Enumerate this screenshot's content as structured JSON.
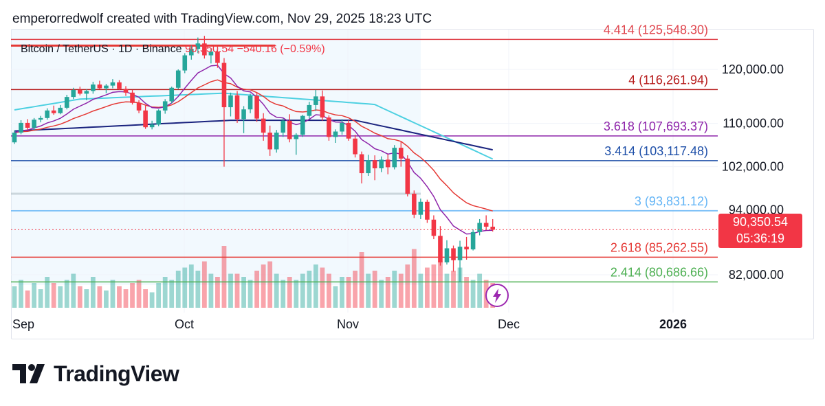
{
  "attribution": "emperorredwolf created with TradingView.com, Nov 29, 2025 18:23 UTC",
  "legend": {
    "symbol": "Bitcoin / TetherUS · 1D · Binance",
    "price": "90,350.54",
    "change": "−540.16 (−0.59%)"
  },
  "price_tag": {
    "price": "90,350.54",
    "countdown": "05:36:19"
  },
  "brand": "TradingView",
  "chart_data": {
    "type": "candlestick",
    "title": "",
    "y_axis": {
      "ticks": [
        "120,000.00",
        "110,000.00",
        "102,000.00",
        "94,000.00",
        "82,000.00"
      ],
      "values": [
        120000,
        110000,
        102000,
        94000,
        82000
      ]
    },
    "x_axis": {
      "ticks": [
        "Sep",
        "Oct",
        "Nov",
        "Dec",
        "2026"
      ]
    },
    "fib_levels": [
      {
        "ratio": "4.414",
        "price": "125,548.30",
        "label": "4.414 (125,548.30)",
        "color": "#e0454d",
        "value": 125548.3
      },
      {
        "ratio": "4",
        "price": "116,261.94",
        "label": "4 (116,261.94)",
        "color": "#b71c1c",
        "value": 116261.94
      },
      {
        "ratio": "3.618",
        "price": "107,693.37",
        "label": "3.618 (107,693.37)",
        "color": "#8e24aa",
        "value": 107693.37
      },
      {
        "ratio": "3.414",
        "price": "103,117.48",
        "label": "3.414 (103,117.48)",
        "color": "#1e4fa8",
        "value": 103117.48
      },
      {
        "ratio": "3",
        "price": "93,831.12",
        "label": "3 (93,831.12)",
        "color": "#64b5f6",
        "value": 93831.12
      },
      {
        "ratio": "2.618",
        "price": "85,262.55",
        "label": "2.618 (85,262.55)",
        "color": "#e53935",
        "value": 85262.55
      },
      {
        "ratio": "2.414",
        "price": "80,686.66",
        "label": "2.414 (80,686.66)",
        "color": "#4caf50",
        "value": 80686.66
      }
    ],
    "colors": {
      "up": "#26a69a",
      "down": "#f23645",
      "ma_fast": "#8e24aa",
      "ma_mid": "#e53935",
      "ma_cyan": "#4dd0e1",
      "ma_slow": "#1a237e"
    },
    "candles": [
      [
        106500,
        108700,
        106200,
        108300
      ],
      [
        108300,
        110600,
        108000,
        110100
      ],
      [
        110100,
        110800,
        108800,
        109200
      ],
      [
        109200,
        111000,
        108800,
        110700
      ],
      [
        110700,
        111400,
        110200,
        111000
      ],
      [
        111000,
        112800,
        110700,
        112400
      ],
      [
        112400,
        113300,
        111600,
        111900
      ],
      [
        111900,
        113400,
        111700,
        112900
      ],
      [
        112900,
        115300,
        112600,
        114900
      ],
      [
        114900,
        116600,
        114500,
        116200
      ],
      [
        116200,
        116800,
        115200,
        115500
      ],
      [
        115500,
        116300,
        114300,
        116000
      ],
      [
        116000,
        117700,
        115500,
        117200
      ],
      [
        117200,
        117900,
        116300,
        116500
      ],
      [
        116500,
        117300,
        115600,
        117000
      ],
      [
        117000,
        118200,
        116500,
        117600
      ],
      [
        117600,
        118000,
        116200,
        116400
      ],
      [
        116400,
        116900,
        115100,
        115700
      ],
      [
        115700,
        116200,
        113500,
        113800
      ],
      [
        113800,
        114300,
        111900,
        112400
      ],
      [
        112400,
        113300,
        109000,
        109300
      ],
      [
        109300,
        110500,
        108900,
        109800
      ],
      [
        109800,
        112600,
        109500,
        112400
      ],
      [
        112400,
        114500,
        111800,
        114100
      ],
      [
        114100,
        116800,
        113700,
        116600
      ],
      [
        116600,
        120000,
        116300,
        119800
      ],
      [
        119800,
        123000,
        119300,
        122600
      ],
      [
        122600,
        124400,
        121800,
        123800
      ],
      [
        123800,
        125900,
        123000,
        124800
      ],
      [
        124800,
        126200,
        122000,
        122600
      ],
      [
        122600,
        123900,
        121100,
        123300
      ],
      [
        123300,
        123800,
        120300,
        121200
      ],
      [
        121200,
        122100,
        102000,
        113000
      ],
      [
        113000,
        115700,
        111300,
        115200
      ],
      [
        115200,
        116000,
        110100,
        110800
      ],
      [
        110800,
        113200,
        108200,
        112600
      ],
      [
        112600,
        115500,
        111900,
        115100
      ],
      [
        115100,
        115700,
        110300,
        110900
      ],
      [
        110900,
        111900,
        106800,
        108300
      ],
      [
        108300,
        109600,
        104000,
        105200
      ],
      [
        105200,
        108800,
        104600,
        108300
      ],
      [
        108300,
        110900,
        107500,
        110500
      ],
      [
        110500,
        111700,
        106500,
        107100
      ],
      [
        107100,
        108200,
        104200,
        107900
      ],
      [
        107900,
        111600,
        107500,
        111400
      ],
      [
        111400,
        114000,
        110900,
        113400
      ],
      [
        113400,
        116200,
        112300,
        115000
      ],
      [
        115000,
        116100,
        110500,
        111100
      ],
      [
        111100,
        111500,
        106800,
        107500
      ],
      [
        107500,
        108900,
        106400,
        108500
      ],
      [
        108500,
        110800,
        107900,
        110100
      ],
      [
        110100,
        110600,
        106800,
        107200
      ],
      [
        107200,
        107900,
        103700,
        104300
      ],
      [
        104300,
        104800,
        98900,
        100800
      ],
      [
        100800,
        104200,
        100300,
        103200
      ],
      [
        103200,
        104100,
        99500,
        101700
      ],
      [
        101700,
        103900,
        101000,
        103300
      ],
      [
        103300,
        104300,
        100600,
        101900
      ],
      [
        101900,
        106000,
        101500,
        105500
      ],
      [
        105500,
        106600,
        102000,
        103500
      ],
      [
        103500,
        104100,
        96500,
        97000
      ],
      [
        97000,
        97600,
        92500,
        93100
      ],
      [
        93100,
        96100,
        92300,
        95500
      ],
      [
        95500,
        95900,
        91600,
        92200
      ],
      [
        92200,
        93000,
        88600,
        89200
      ],
      [
        89200,
        91000,
        83700,
        84300
      ],
      [
        84300,
        88400,
        83900,
        86900
      ],
      [
        86900,
        87400,
        82600,
        84700
      ],
      [
        84700,
        88300,
        80600,
        87200
      ],
      [
        87200,
        89000,
        84800,
        86700
      ],
      [
        86700,
        90400,
        86500,
        89900
      ],
      [
        89900,
        92300,
        89300,
        91600
      ],
      [
        91600,
        93000,
        90400,
        90900
      ],
      [
        90900,
        92300,
        90000,
        90350
      ]
    ],
    "volume": [
      0.35,
      0.45,
      0.28,
      0.4,
      0.3,
      0.5,
      0.4,
      0.35,
      0.45,
      0.55,
      0.35,
      0.3,
      0.5,
      0.35,
      0.28,
      0.45,
      0.35,
      0.3,
      0.4,
      0.45,
      0.3,
      0.25,
      0.4,
      0.5,
      0.45,
      0.6,
      0.65,
      0.7,
      0.6,
      0.75,
      0.55,
      0.5,
      1.0,
      0.55,
      0.55,
      0.5,
      0.45,
      0.6,
      0.7,
      0.75,
      0.55,
      0.45,
      0.5,
      0.45,
      0.55,
      0.6,
      0.7,
      0.65,
      0.55,
      0.35,
      0.5,
      0.5,
      0.6,
      0.9,
      0.55,
      0.6,
      0.45,
      0.5,
      0.6,
      0.55,
      0.7,
      0.95,
      0.55,
      0.65,
      0.7,
      0.75,
      0.55,
      0.6,
      0.65,
      0.5,
      0.45,
      0.55,
      0.45,
      0.4
    ]
  }
}
